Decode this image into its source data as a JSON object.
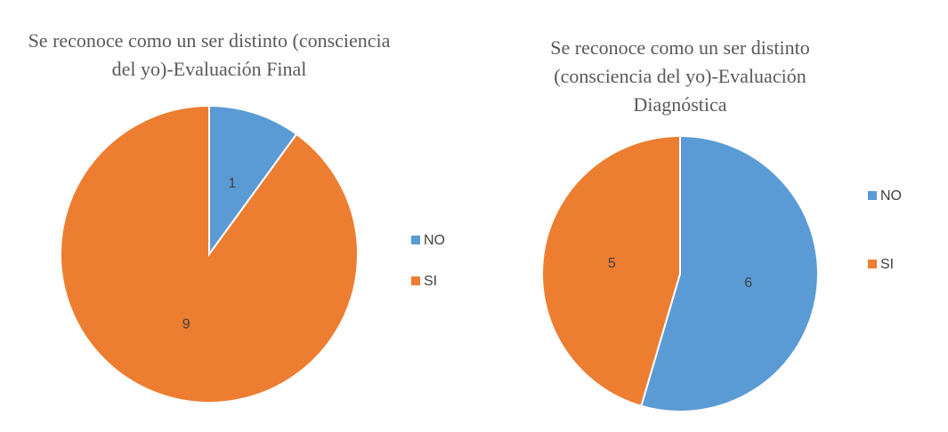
{
  "chart_data": [
    {
      "type": "pie",
      "title": "Se reconoce como un ser distinto (consciencia del yo)-Evaluación Final",
      "categories": [
        "NO",
        "SI"
      ],
      "values": [
        1,
        9
      ],
      "colors": [
        "#5b9bd5",
        "#ed7d31"
      ],
      "legend": "right"
    },
    {
      "type": "pie",
      "title": "Se reconoce como un ser distinto (consciencia del yo)-Evaluación Diagnóstica",
      "categories": [
        "NO",
        "SI"
      ],
      "values": [
        6,
        5
      ],
      "colors": [
        "#5b9bd5",
        "#ed7d31"
      ],
      "legend": "right"
    }
  ]
}
